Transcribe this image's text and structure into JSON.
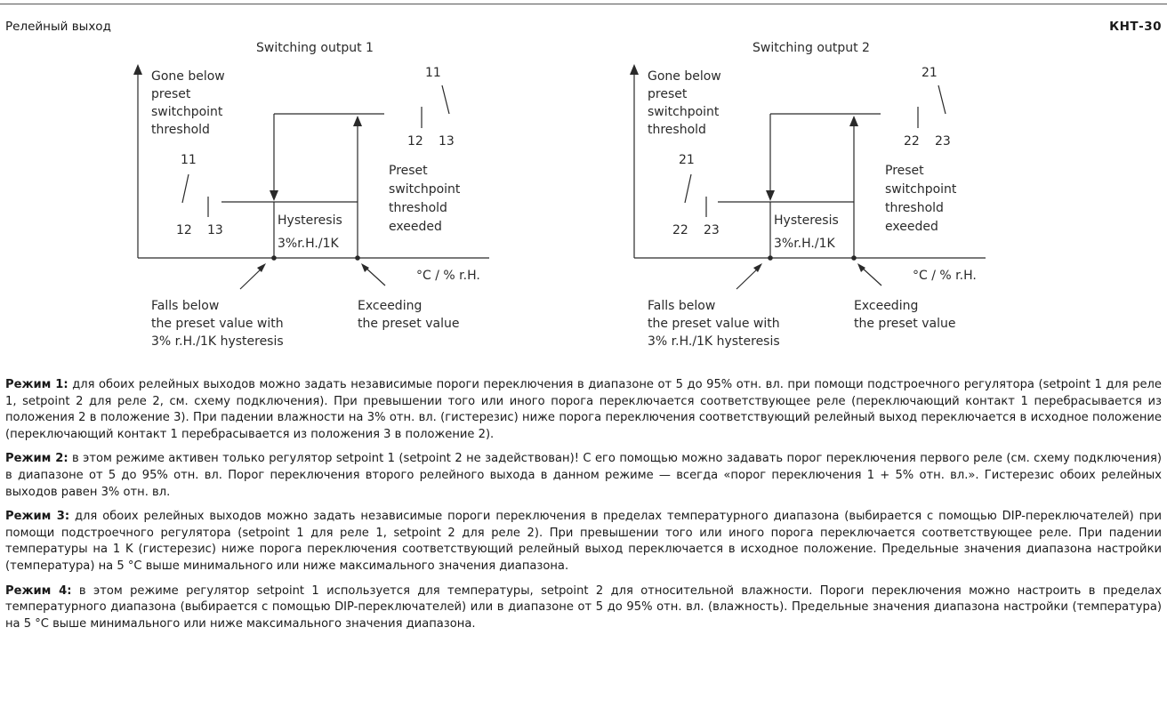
{
  "header": {
    "left": "Релейный выход",
    "right": "КНТ-30"
  },
  "diagrams": [
    {
      "title": "Switching output 1",
      "gone_below": [
        "Gone below",
        "preset",
        "switchpoint",
        "threshold"
      ],
      "contacts_left": {
        "common": "11",
        "a": "12",
        "b": "13"
      },
      "contacts_right": {
        "common": "11",
        "a": "12",
        "b": "13"
      },
      "preset_exceeded": [
        "Preset",
        "switchpoint",
        "threshold",
        "exeeded"
      ],
      "hysteresis": "Hysteresis",
      "hysteresis_value": "3%r.H./1K",
      "axis_label": "°C / % r.H.",
      "falls_below": [
        "Falls below",
        "the preset value with",
        "3% r.H./1K hysteresis"
      ],
      "exceeding": [
        "Exceeding",
        "the preset value"
      ]
    },
    {
      "title": "Switching output 2",
      "gone_below": [
        "Gone below",
        "preset",
        "switchpoint",
        "threshold"
      ],
      "contacts_left": {
        "common": "21",
        "a": "22",
        "b": "23"
      },
      "contacts_right": {
        "common": "21",
        "a": "22",
        "b": "23"
      },
      "preset_exceeded": [
        "Preset",
        "switchpoint",
        "threshold",
        "exeeded"
      ],
      "hysteresis": "Hysteresis",
      "hysteresis_value": "3%r.H./1K",
      "axis_label": "°C / % r.H.",
      "falls_below": [
        "Falls below",
        "the preset value with",
        "3% r.H./1K hysteresis"
      ],
      "exceeding": [
        "Exceeding",
        "the preset value"
      ]
    }
  ],
  "modes": [
    {
      "label": "Режим 1:",
      "text": "для обоих релейных выходов можно задать независимые пороги переключения в диапазоне от 5 до 95% отн. вл. при помощи подстроечного регулятора (setpoint 1 для реле 1, setpoint 2 для реле 2, см. схему подключения). При превышении того или иного порога переключается соответствующее реле (переключающий контакт 1 перебрасывается из положения 2 в положение 3). При падении влажности на 3% отн. вл. (гистерезис) ниже порога переключения соответствующий релейный выход переключается в исходное положение (переключающий контакт 1 перебрасывается из положения 3 в положение 2)."
    },
    {
      "label": "Режим 2:",
      "text": "в этом режиме активен только регулятор setpoint 1 (setpoint 2 не задействован)! С его помощью можно задавать порог переключения первого реле (см. схему подключения) в диапазоне от 5 до 95% отн. вл. Порог переключения второго релейного выхода в данном режиме — всегда «порог переключения 1 + 5% отн. вл.». Гистерезис обоих релейных выходов равен 3% отн. вл."
    },
    {
      "label": "Режим 3:",
      "text": "для обоих релейных выходов можно задать независимые пороги переключения в пределах температурного диапазона (выбирается с помощью DIP-переключателей) при помощи подстроечного регулятора (setpoint 1 для реле 1, setpoint 2 для реле 2). При превышении того или иного порога переключается соответствующее реле. При падении температуры на 1 K (гистерезис) ниже порога переключения соответствующий релейный выход переключается в исходное положение. Предельные значения диапазона настройки (температура) на 5 °C выше минимального или ниже максимального значения диапазона."
    },
    {
      "label": "Режим 4:",
      "text": "в этом режиме регулятор setpoint 1 используется для температуры, setpoint 2 для относительной влажности. Пороги переключения можно настроить в пределах температурного диапазона (выбирается с помощью DIP-переключателей) или в диапазоне от 5 до 95% отн. вл. (влажность). Предельные значения диапазона настройки (температура) на 5 °C выше минимального или ниже максимального значения диапазона."
    }
  ]
}
